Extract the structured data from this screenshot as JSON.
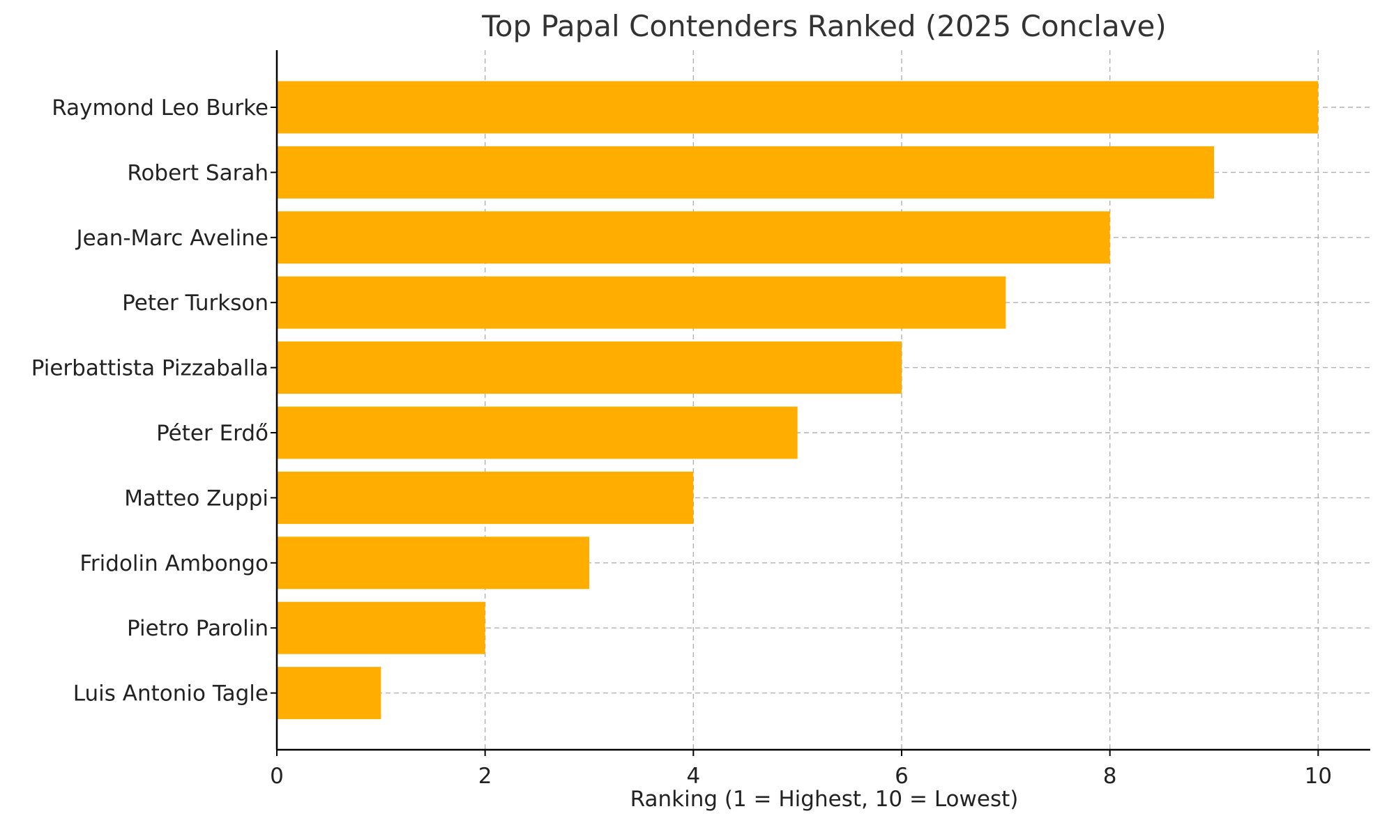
{
  "chart_data": {
    "type": "bar",
    "orientation": "horizontal",
    "title": "Top Papal Contenders Ranked (2025 Conclave)",
    "xlabel": "Ranking (1 = Highest, 10 = Lowest)",
    "ylabel": "",
    "categories": [
      "Raymond Leo Burke",
      "Robert Sarah",
      "Jean-Marc Aveline",
      "Peter Turkson",
      "Pierbattista Pizzaballa",
      "Péter Erdő",
      "Matteo Zuppi",
      "Fridolin Ambongo",
      "Pietro Parolin",
      "Luis Antonio Tagle"
    ],
    "values": [
      10,
      9,
      8,
      7,
      6,
      5,
      4,
      3,
      2,
      1
    ],
    "xlim": [
      0,
      10.5
    ],
    "xticks": [
      0,
      2,
      4,
      6,
      8,
      10
    ],
    "grid": true,
    "bar_color": "#FFAE00",
    "legend": "none"
  }
}
